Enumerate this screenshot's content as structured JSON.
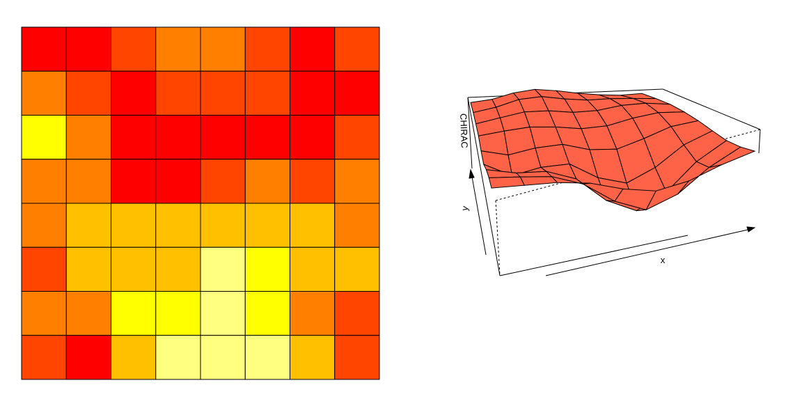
{
  "chart_data": [
    {
      "type": "heatmap",
      "rows": 8,
      "cols": 8,
      "level_colors": [
        "#FF0000",
        "#FF4500",
        "#FF8000",
        "#FFC000",
        "#FFFF00",
        "#FFFF80"
      ],
      "levels": [
        [
          0,
          0,
          1,
          2,
          2,
          1,
          0,
          1
        ],
        [
          2,
          1,
          0,
          1,
          1,
          1,
          0,
          0
        ],
        [
          4,
          2,
          0,
          0,
          0,
          0,
          0,
          1
        ],
        [
          2,
          2,
          0,
          0,
          1,
          2,
          1,
          2
        ],
        [
          2,
          3,
          3,
          3,
          3,
          3,
          3,
          2
        ],
        [
          1,
          3,
          3,
          3,
          5,
          4,
          3,
          3
        ],
        [
          2,
          2,
          4,
          4,
          5,
          4,
          2,
          1
        ],
        [
          1,
          0,
          3,
          5,
          5,
          5,
          3,
          1
        ]
      ],
      "grid": true
    },
    {
      "type": "surface",
      "xlabel": "x",
      "ylabel": "y",
      "zlabel": "CHIRAC",
      "surface_color": "#FF6347",
      "grid_size": [
        8,
        8
      ]
    }
  ]
}
